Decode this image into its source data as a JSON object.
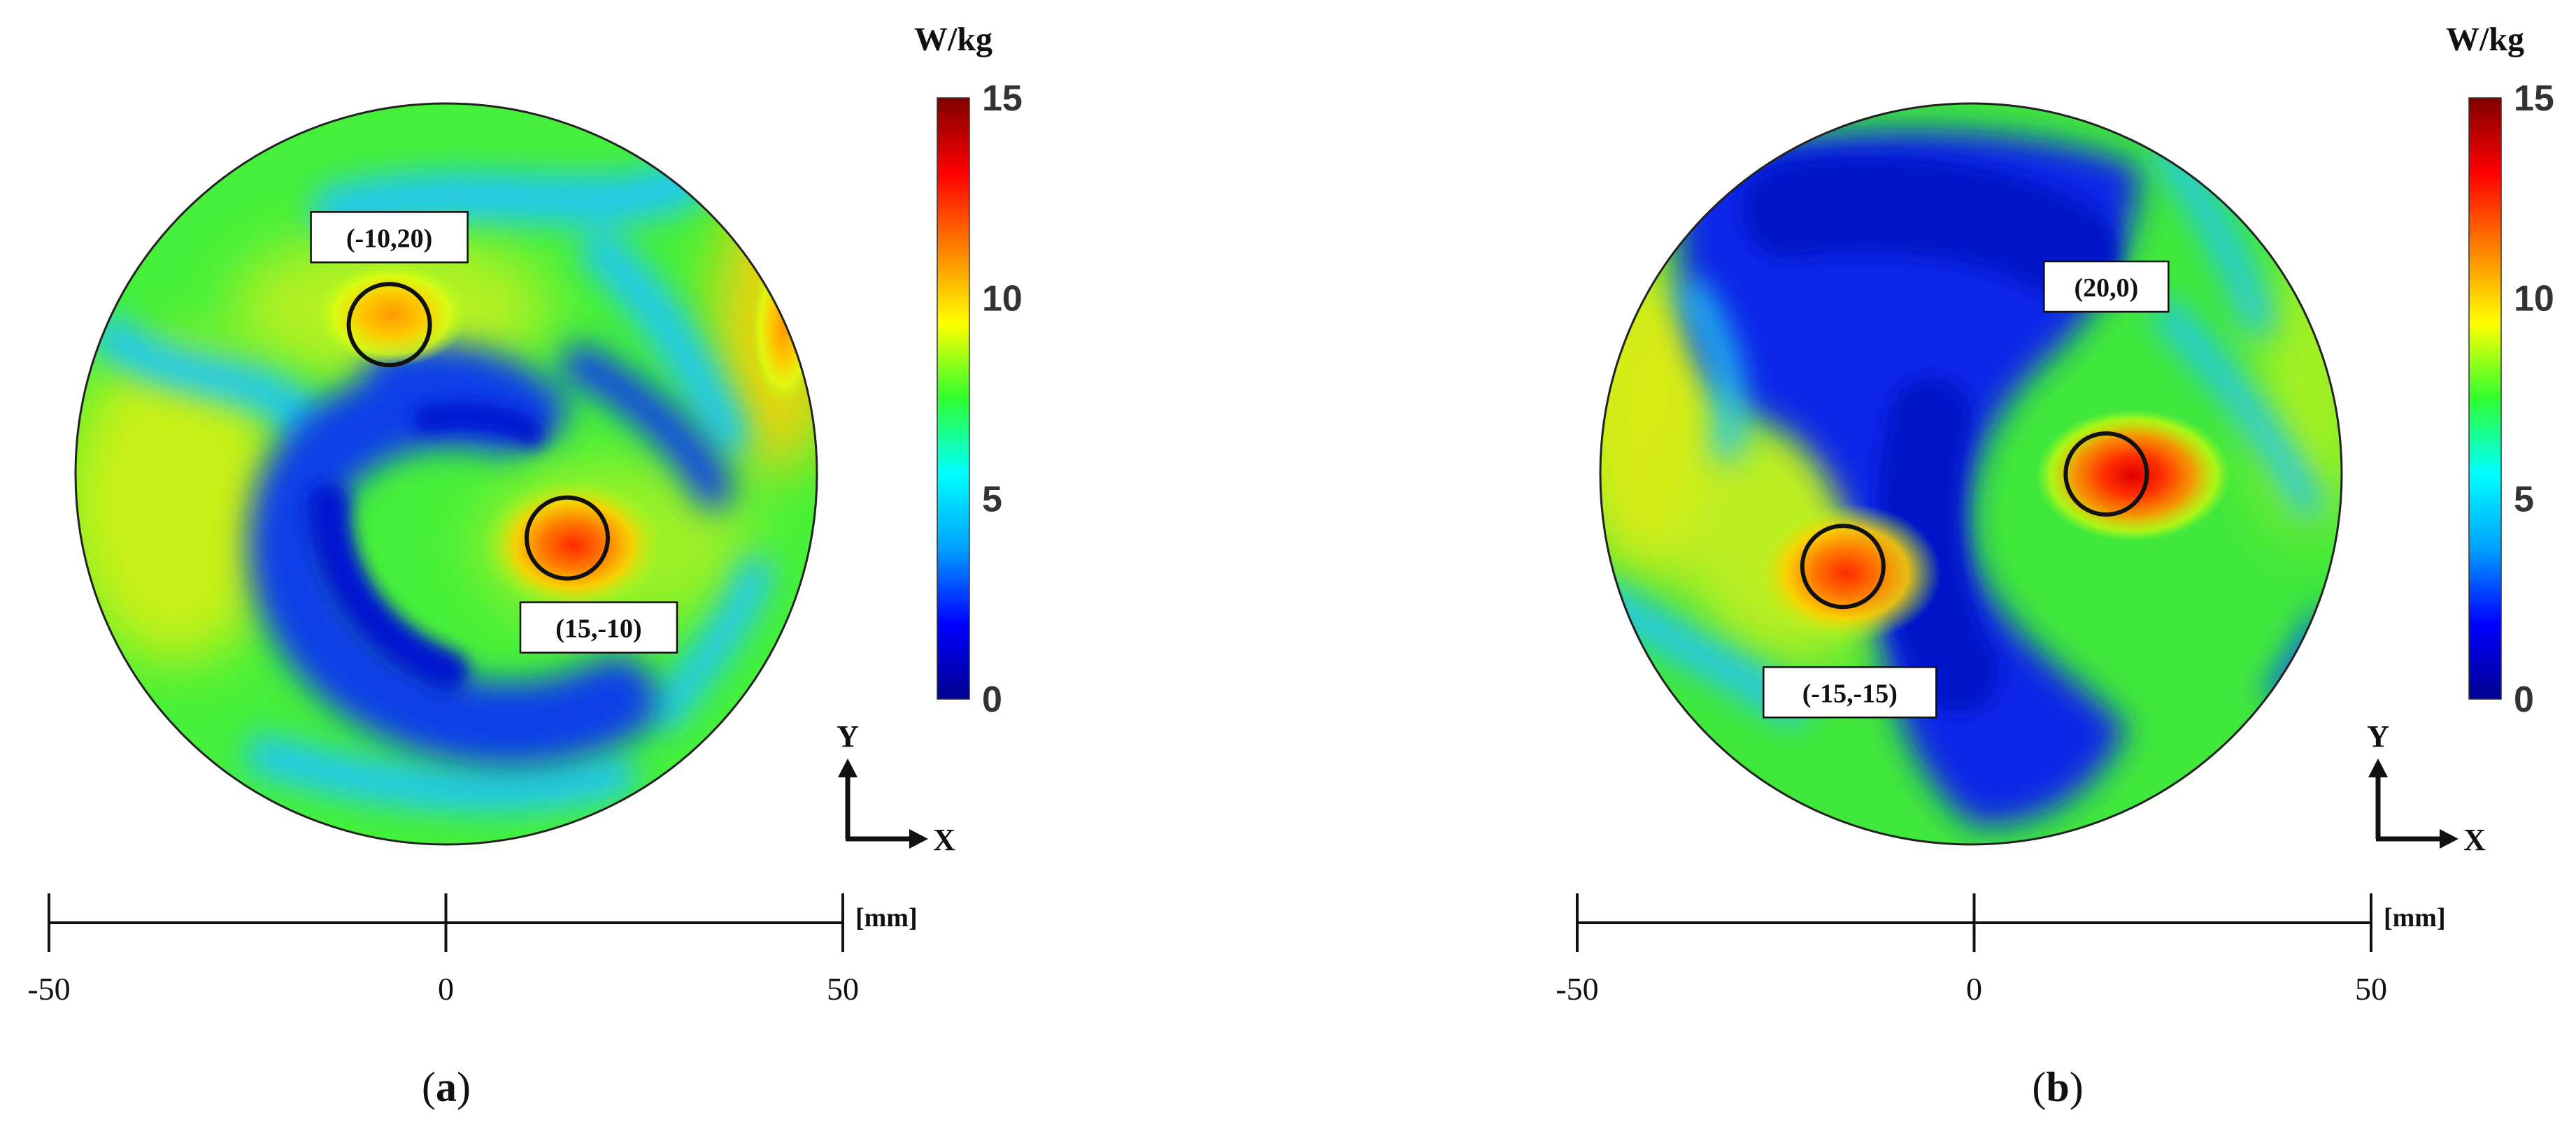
{
  "figure": {
    "panels": [
      {
        "label_open": "(",
        "label_letter": "a",
        "label_close": ")"
      },
      {
        "label_open": "(",
        "label_letter": "b",
        "label_close": ")"
      }
    ]
  },
  "colorbar": {
    "unit": "W/kg",
    "ticks": [
      "15",
      "10",
      "5",
      "0"
    ],
    "colors": [
      "#00008f",
      "#0000ff",
      "#00a0ff",
      "#00ffff",
      "#30ff30",
      "#ffff00",
      "#ff8000",
      "#ff0000",
      "#800000"
    ]
  },
  "axis_arrows": {
    "y_label": "Y",
    "x_label": "X"
  },
  "scale_bar": {
    "unit": "[mm]",
    "ticks": [
      "-50",
      "0",
      "50"
    ]
  },
  "chart_data": [
    {
      "type": "heatmap",
      "panel": "a",
      "value_unit": "W/kg",
      "zlim": [
        0,
        15
      ],
      "xlim": [
        -50,
        50
      ],
      "ylim": [
        -50,
        50
      ],
      "hotspots": [
        {
          "label": "(-10,20)",
          "x": -8,
          "y": 21,
          "value": 11
        },
        {
          "label": "(15,-10)",
          "x": 17,
          "y": -9,
          "value": 13
        }
      ]
    },
    {
      "type": "heatmap",
      "panel": "b",
      "value_unit": "W/kg",
      "zlim": [
        0,
        15
      ],
      "xlim": [
        -50,
        50
      ],
      "ylim": [
        -50,
        50
      ],
      "hotspots": [
        {
          "label": "(20,0)",
          "x": 19,
          "y": 0,
          "value": 14
        },
        {
          "label": "(-15,-15)",
          "x": -18,
          "y": -13,
          "value": 13
        }
      ]
    }
  ]
}
